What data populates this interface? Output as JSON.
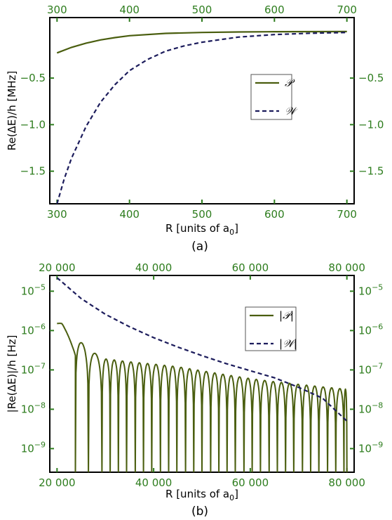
{
  "colors": {
    "P": "#4a5e0f",
    "W": "#1c1c5c",
    "tick": "#2e7d1e",
    "frame": "#000000"
  },
  "chart_data": [
    {
      "type": "line",
      "panel": "(a)",
      "caption": "(a)",
      "xlabel": "R [units of a",
      "xlabel_sub": "0",
      "xlabel_close": "]",
      "ylabel": "Re(ΔE)/h [MHz]",
      "xlim": [
        290,
        710
      ],
      "ylim": [
        -1.85,
        0.15
      ],
      "yscale": "linear",
      "xticks": [
        300,
        400,
        500,
        600,
        700
      ],
      "xtick_labels": [
        "300",
        "400",
        "500",
        "600",
        "700"
      ],
      "yticks": [
        -0.5,
        -1.0,
        -1.5
      ],
      "ytick_labels": [
        "−0.5",
        "−1.0",
        "−1.5"
      ],
      "ticks_mirrored": true,
      "legend_position": "right-middle",
      "series": [
        {
          "name": "𝒫",
          "style": "solid",
          "x": [
            300,
            320,
            340,
            360,
            380,
            400,
            450,
            500,
            550,
            600,
            650,
            700
          ],
          "y": [
            -0.23,
            -0.17,
            -0.125,
            -0.09,
            -0.065,
            -0.045,
            -0.02,
            -0.01,
            -0.005,
            -0.002,
            -0.001,
            0.0
          ]
        },
        {
          "name": "𝒲",
          "style": "dashed",
          "x": [
            300,
            310,
            320,
            340,
            360,
            380,
            400,
            425,
            450,
            475,
            500,
            550,
            600,
            650,
            700
          ],
          "y": [
            -1.85,
            -1.58,
            -1.36,
            -1.02,
            -0.76,
            -0.57,
            -0.42,
            -0.3,
            -0.21,
            -0.155,
            -0.115,
            -0.06,
            -0.033,
            -0.018,
            -0.01
          ]
        }
      ]
    },
    {
      "type": "line",
      "panel": "(b)",
      "caption": "(b)",
      "xlabel": "R [units of a",
      "xlabel_sub": "0",
      "xlabel_close": "]",
      "ylabel": "|Re(ΔE)|/h [Hz]",
      "xlim": [
        18500,
        81500
      ],
      "ylim_log10": [
        -9.6,
        -4.6
      ],
      "yscale": "log",
      "xticks": [
        20000,
        40000,
        60000,
        80000
      ],
      "xtick_labels": [
        "20 000",
        "40 000",
        "60 000",
        "80 000"
      ],
      "yticks_log10": [
        -5,
        -6,
        -7,
        -8,
        -9
      ],
      "ytick_base": "10",
      "ytick_exponents": [
        "−5",
        "−6",
        "−7",
        "−8",
        "−9"
      ],
      "ticks_mirrored": true,
      "legend_position": "top-right",
      "series": [
        {
          "name": "|𝒫|",
          "style": "solid",
          "envelope_x": [
            20000,
            21000,
            23000,
            25000,
            27000,
            30000,
            35000,
            40000,
            45000,
            50000,
            55000,
            60000,
            65000,
            70000,
            75000,
            80000
          ],
          "envelope_y": [
            1.5e-06,
            1.6e-06,
            8e-07,
            5e-07,
            3e-07,
            1.9e-07,
            1.6e-07,
            1.4e-07,
            1.2e-07,
            9.5e-08,
            7.5e-08,
            6e-08,
            5e-08,
            4.3e-08,
            3.7e-08,
            3.2e-08
          ],
          "zero_crossings": [
            23800,
            26500,
            29300,
            31000,
            32700,
            34400,
            36200,
            37900,
            39600,
            41400,
            43100,
            44800,
            46600,
            48300,
            50000,
            51800,
            53500,
            55200,
            56900,
            58700,
            60400,
            62100,
            63900,
            65600,
            67300,
            69000,
            70800,
            72500,
            74200,
            76000,
            77700,
            79400
          ]
        },
        {
          "name": "|𝒲|",
          "style": "dashed",
          "x": [
            20000,
            25000,
            30000,
            35000,
            40000,
            45000,
            50000,
            55000,
            60000,
            65000,
            70000,
            75000,
            80000
          ],
          "y": [
            2.2e-05,
            6.5e-06,
            2.6e-06,
            1.25e-06,
            6.6e-07,
            3.8e-07,
            2.3e-07,
            1.45e-07,
            9.5e-08,
            6.3e-08,
            3.6e-08,
            1.9e-08,
            5e-09
          ]
        }
      ]
    }
  ]
}
